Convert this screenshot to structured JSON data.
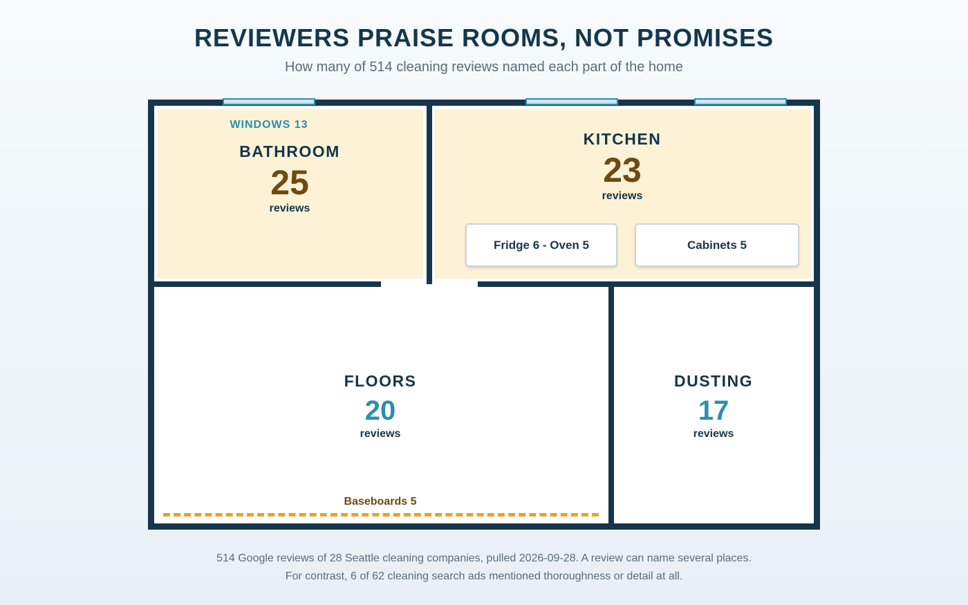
{
  "header": {
    "title": "REVIEWERS PRAISE ROOMS, NOT PROMISES",
    "subtitle": "How many of 514 cleaning reviews named each part of the home"
  },
  "rooms": {
    "bathroom": {
      "name": "BATHROOM",
      "count": "25",
      "unit": "reviews"
    },
    "kitchen": {
      "name": "KITCHEN",
      "count": "23",
      "unit": "reviews"
    },
    "floors": {
      "name": "FLOORS",
      "count": "20",
      "unit": "reviews"
    },
    "dusting": {
      "name": "DUSTING",
      "count": "17",
      "unit": "reviews"
    }
  },
  "windows_label": "WINDOWS 13",
  "kitchen_items": [
    "Fridge 6 - Oven 5",
    "Cabinets 5"
  ],
  "baseboards_label": "Baseboards 5",
  "footnotes": [
    "514 Google reviews of 28 Seattle cleaning companies, pulled 2026-09-28. A review can name several places.",
    "For contrast, 6 of 62 cleaning search ads mentioned thoroughness or detail at all."
  ],
  "colors": {
    "wall": "#15364b",
    "highlight_fill": "#fdf2d6",
    "amber_number": "#6e4a12",
    "teal_number": "#2b8fb0",
    "baseboard": "#e9a226"
  }
}
